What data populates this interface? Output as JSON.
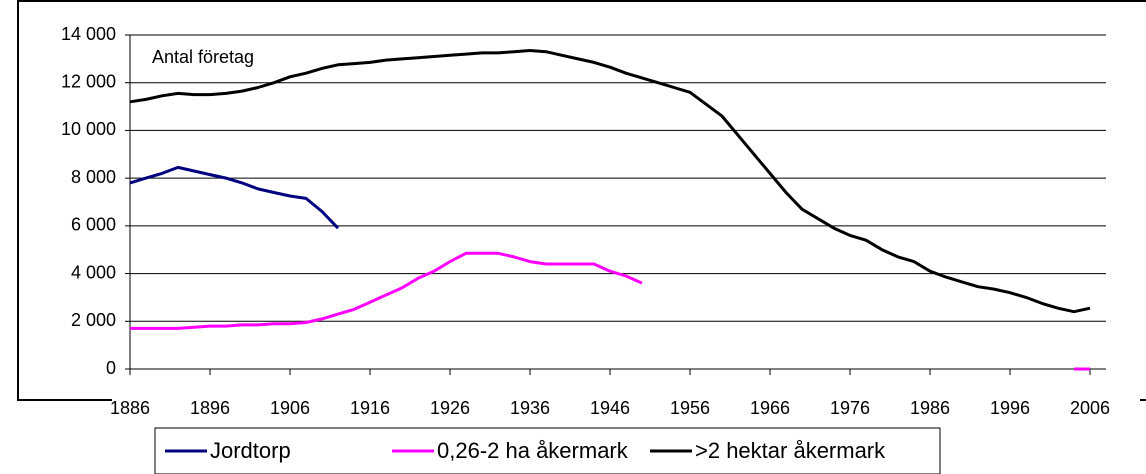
{
  "chart_data": {
    "type": "line",
    "annotation": "Antal företag",
    "x": [
      1886,
      1888,
      1890,
      1892,
      1894,
      1896,
      1898,
      1900,
      1902,
      1904,
      1906,
      1908,
      1910,
      1912,
      1914,
      1916,
      1918,
      1920,
      1922,
      1924,
      1926,
      1928,
      1930,
      1932,
      1934,
      1936,
      1938,
      1940,
      1942,
      1944,
      1946,
      1948,
      1950,
      1952,
      1954,
      1956,
      1958,
      1960,
      1962,
      1964,
      1966,
      1968,
      1970,
      1972,
      1974,
      1976,
      1978,
      1980,
      1982,
      1984,
      1986,
      1988,
      1990,
      1992,
      1994,
      1996,
      1998,
      2000,
      2002,
      2004,
      2006
    ],
    "series": [
      {
        "name": "Jordtorp",
        "color": "#000080",
        "values": [
          7800,
          8000,
          8200,
          8450,
          8300,
          8150,
          8000,
          7800,
          7550,
          7400,
          7250,
          7150,
          6600,
          5900,
          null,
          null,
          null,
          null,
          null,
          null,
          null,
          null,
          null,
          null,
          null,
          null,
          null,
          null,
          null,
          null,
          null,
          null,
          null,
          null,
          null,
          null,
          null,
          null,
          null,
          null,
          null,
          null,
          null,
          null,
          null,
          null,
          null,
          null,
          null,
          null,
          null,
          null,
          null,
          null,
          null,
          null,
          null,
          null,
          null,
          null,
          null
        ]
      },
      {
        "name": "0,26-2 ha åkermark",
        "color": "#ff00ff",
        "values": [
          1700,
          1700,
          1700,
          1700,
          1750,
          1800,
          1800,
          1850,
          1850,
          1900,
          1900,
          1950,
          2100,
          2300,
          2500,
          2800,
          3100,
          3400,
          3800,
          4100,
          4500,
          4850,
          4850,
          4850,
          4700,
          4500,
          4400,
          4400,
          4400,
          4400,
          4100,
          3900,
          3600,
          null,
          null,
          null,
          null,
          null,
          null,
          null,
          null,
          null,
          null,
          null,
          null,
          null,
          null,
          null,
          null,
          null,
          null,
          null,
          null,
          null,
          null,
          null,
          null,
          null,
          null,
          0,
          0
        ]
      },
      {
        "name": ">2 hektar åkermark",
        "color": "#000000",
        "values": [
          11200,
          11300,
          11450,
          11550,
          11500,
          11500,
          11550,
          11650,
          11800,
          12000,
          12250,
          12400,
          12600,
          12750,
          12800,
          12850,
          12950,
          13000,
          13050,
          13100,
          13150,
          13200,
          13250,
          13250,
          13300,
          13350,
          13300,
          13150,
          13000,
          12850,
          12650,
          12400,
          12200,
          12000,
          11800,
          11600,
          11100,
          10600,
          9800,
          9000,
          8200,
          7400,
          6700,
          6300,
          5900,
          5600,
          5400,
          5000,
          4700,
          4500,
          4100,
          3850,
          3650,
          3450,
          3350,
          3200,
          3000,
          2750,
          2550,
          2400,
          2550
        ]
      }
    ],
    "xlim": [
      1886,
      2008
    ],
    "xticks": [
      1886,
      1896,
      1906,
      1916,
      1926,
      1936,
      1946,
      1956,
      1966,
      1976,
      1986,
      1996,
      2006
    ],
    "ylim": [
      0,
      14000
    ],
    "yticks": [
      0,
      {
        "value": 2000,
        "label": "2 000"
      },
      {
        "value": 4000,
        "label": "4 000"
      },
      {
        "value": 6000,
        "label": "6 000"
      },
      {
        "value": 8000,
        "label": "8 000"
      },
      {
        "value": 10000,
        "label": "10 000"
      },
      {
        "value": 12000,
        "label": "12 000"
      },
      {
        "value": 14000,
        "label": "14 000"
      }
    ],
    "grid": true,
    "legend": "bottom"
  }
}
